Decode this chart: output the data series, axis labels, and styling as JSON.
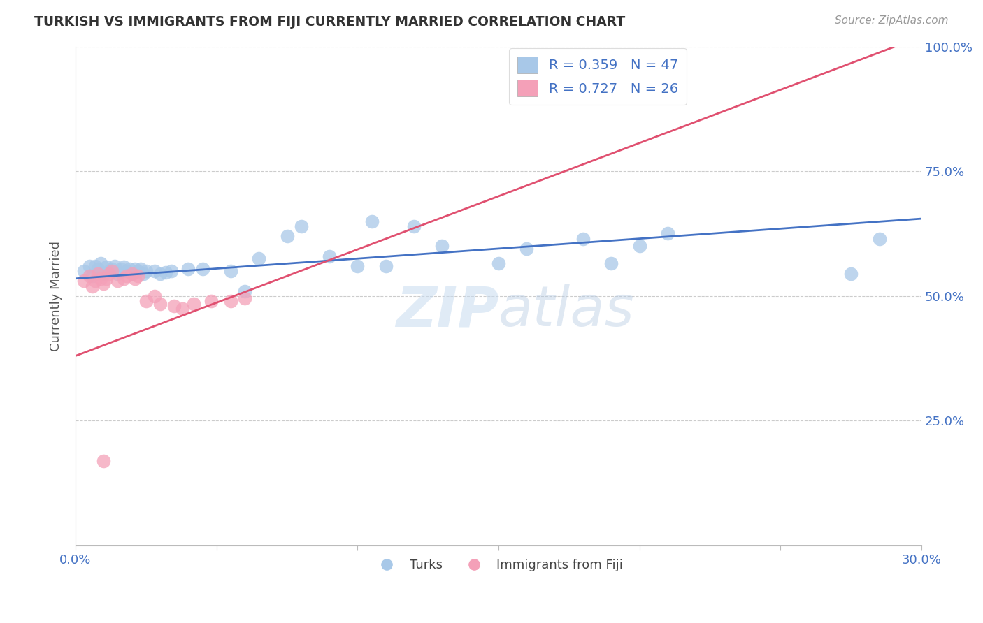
{
  "title": "TURKISH VS IMMIGRANTS FROM FIJI CURRENTLY MARRIED CORRELATION CHART",
  "source": "Source: ZipAtlas.com",
  "xlabel": "",
  "ylabel": "Currently Married",
  "xlim": [
    0.0,
    0.3
  ],
  "ylim": [
    0.0,
    1.0
  ],
  "ytick_labels": [
    "",
    "25.0%",
    "50.0%",
    "75.0%",
    "100.0%"
  ],
  "watermark": "ZIPatlas",
  "blue_R": 0.359,
  "blue_N": 47,
  "pink_R": 0.727,
  "pink_N": 26,
  "blue_color": "#A8C8E8",
  "pink_color": "#F4A0B8",
  "blue_line_color": "#4472C4",
  "pink_line_color": "#E05070",
  "turks_x": [
    0.003,
    0.005,
    0.006,
    0.007,
    0.008,
    0.009,
    0.01,
    0.011,
    0.012,
    0.013,
    0.014,
    0.015,
    0.016,
    0.017,
    0.018,
    0.019,
    0.02,
    0.021,
    0.022,
    0.023,
    0.024,
    0.025,
    0.028,
    0.03,
    0.032,
    0.034,
    0.04,
    0.045,
    0.055,
    0.06,
    0.065,
    0.075,
    0.08,
    0.09,
    0.1,
    0.105,
    0.11,
    0.12,
    0.13,
    0.15,
    0.16,
    0.18,
    0.19,
    0.2,
    0.21,
    0.275,
    0.285
  ],
  "turks_y": [
    0.55,
    0.56,
    0.54,
    0.56,
    0.555,
    0.565,
    0.545,
    0.558,
    0.55,
    0.555,
    0.56,
    0.545,
    0.555,
    0.558,
    0.55,
    0.555,
    0.545,
    0.555,
    0.55,
    0.555,
    0.545,
    0.55,
    0.55,
    0.545,
    0.548,
    0.55,
    0.555,
    0.555,
    0.55,
    0.51,
    0.575,
    0.62,
    0.64,
    0.58,
    0.56,
    0.65,
    0.56,
    0.64,
    0.6,
    0.565,
    0.595,
    0.615,
    0.565,
    0.6,
    0.625,
    0.545,
    0.615
  ],
  "fiji_x": [
    0.003,
    0.005,
    0.006,
    0.007,
    0.008,
    0.009,
    0.01,
    0.011,
    0.012,
    0.013,
    0.015,
    0.017,
    0.018,
    0.02,
    0.021,
    0.022,
    0.025,
    0.028,
    0.03,
    0.035,
    0.038,
    0.042,
    0.048,
    0.055,
    0.06,
    0.01
  ],
  "fiji_y": [
    0.53,
    0.54,
    0.52,
    0.53,
    0.545,
    0.535,
    0.525,
    0.535,
    0.545,
    0.55,
    0.53,
    0.535,
    0.54,
    0.545,
    0.535,
    0.54,
    0.49,
    0.5,
    0.485,
    0.48,
    0.475,
    0.485,
    0.49,
    0.49,
    0.495,
    0.17
  ]
}
